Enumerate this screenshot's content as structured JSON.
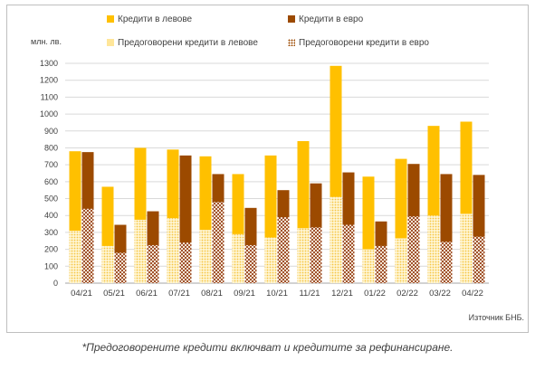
{
  "chart_data": {
    "type": "bar",
    "ylabel": "млн. лв.",
    "ylim": [
      0,
      1300
    ],
    "yticks": [
      0,
      100,
      200,
      300,
      400,
      500,
      600,
      700,
      800,
      900,
      1000,
      1100,
      1200,
      1300
    ],
    "categories": [
      "04/21",
      "05/21",
      "06/21",
      "07/21",
      "08/21",
      "09/21",
      "10/21",
      "11/21",
      "12/21",
      "01/22",
      "02/22",
      "03/22",
      "04/22"
    ],
    "series": [
      {
        "name": "Кредити в левове",
        "color": "#ffc000",
        "values": [
          780,
          570,
          800,
          790,
          750,
          645,
          755,
          840,
          1285,
          630,
          735,
          930,
          955
        ]
      },
      {
        "name": "Кредити в евро",
        "color": "#9c4a00",
        "values": [
          775,
          345,
          425,
          755,
          645,
          445,
          550,
          590,
          655,
          365,
          705,
          645,
          640
        ]
      },
      {
        "name": "Предоговорени кредити в левове",
        "color": "#ffe699",
        "values": [
          310,
          220,
          375,
          385,
          315,
          290,
          270,
          325,
          510,
          200,
          265,
          400,
          410
        ]
      },
      {
        "name": "Предоговорени кредити в евро",
        "color": "#d9b38c",
        "values": [
          440,
          180,
          225,
          240,
          480,
          225,
          390,
          330,
          345,
          220,
          395,
          245,
          275
        ]
      }
    ],
    "grid": true,
    "legend": "top"
  },
  "source": "Източник БНБ.",
  "footnote": "*Предоговорените кредити включват и кредитите за рефинансиране."
}
